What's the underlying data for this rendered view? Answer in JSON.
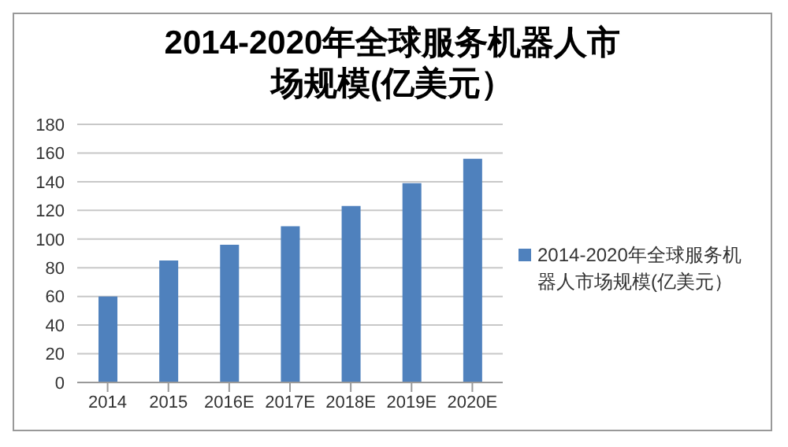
{
  "chart_data": {
    "type": "bar",
    "title": "2014-2020年全球服务机器人市场规模(亿美元）",
    "categories": [
      "2014",
      "2015",
      "2016E",
      "2017E",
      "2018E",
      "2019E",
      "2020E"
    ],
    "series": [
      {
        "name": "2014-2020年全球服务机器人市场规模(亿美元）",
        "color": "#4f81bd",
        "values": [
          60,
          85,
          96,
          109,
          123,
          139,
          156
        ]
      }
    ],
    "ylim": [
      0,
      180
    ],
    "yticks": [
      0,
      20,
      40,
      60,
      80,
      100,
      120,
      140,
      160,
      180
    ],
    "grid": "y",
    "legend": "right"
  }
}
